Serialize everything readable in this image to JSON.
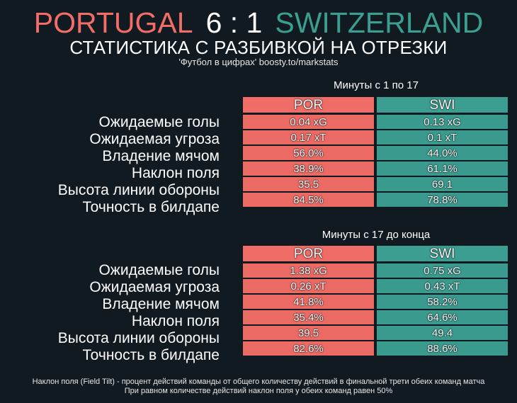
{
  "header": {
    "home_team": "PORTUGAL",
    "score": "6 : 1",
    "away_team": "SWITZERLAND",
    "subtitle": "СТАТИСТИКА С РАЗБИВКОЙ НА ОТРЕЗКИ",
    "credit": "'Футбол в цифрах' boosty.to/markstats"
  },
  "colors": {
    "home": "#ec6a64",
    "away": "#3a9a8e",
    "background": "#121a21"
  },
  "columns": {
    "home": "POR",
    "away": "SWI"
  },
  "sections": [
    {
      "title": "Минуты с 1 по 17",
      "rows": [
        {
          "label": "Ожидаемые голы",
          "home": "0.04 xG",
          "away": "0.13 xG"
        },
        {
          "label": "Ожидаемая угроза",
          "home": "0.17 xT",
          "away": "0.1 xT"
        },
        {
          "label": "Владение мячом",
          "home": "56.0%",
          "away": "44.0%"
        },
        {
          "label": "Наклон поля",
          "home": "38.9%",
          "away": "61.1%"
        },
        {
          "label": "Высота линии обороны",
          "home": "35.5",
          "away": "69.1"
        },
        {
          "label": "Точность в билдапе",
          "home": "84.5%",
          "away": "78.8%"
        }
      ]
    },
    {
      "title": "Минуты с 17 до конца",
      "rows": [
        {
          "label": "Ожидаемые голы",
          "home": "1.38 xG",
          "away": "0.75 xG"
        },
        {
          "label": "Ожидаемая угроза",
          "home": "0.26 xT",
          "away": "0.43 xT"
        },
        {
          "label": "Владение мячом",
          "home": "41.8%",
          "away": "58.2%"
        },
        {
          "label": "Наклон поля",
          "home": "35.4%",
          "away": "64.6%"
        },
        {
          "label": "Высота линии обороны",
          "home": "39.5",
          "away": "49.4"
        },
        {
          "label": "Точность в билдапе",
          "home": "82.6%",
          "away": "88.6%"
        }
      ]
    }
  ],
  "footnote": {
    "line1": "Наклон поля (Field Tilt) - процент действий команды от общего количеству действий в финальной трети обеих команд матча",
    "line2": "При равном количестве действий наклон поля у обеих команд равен 50%"
  }
}
